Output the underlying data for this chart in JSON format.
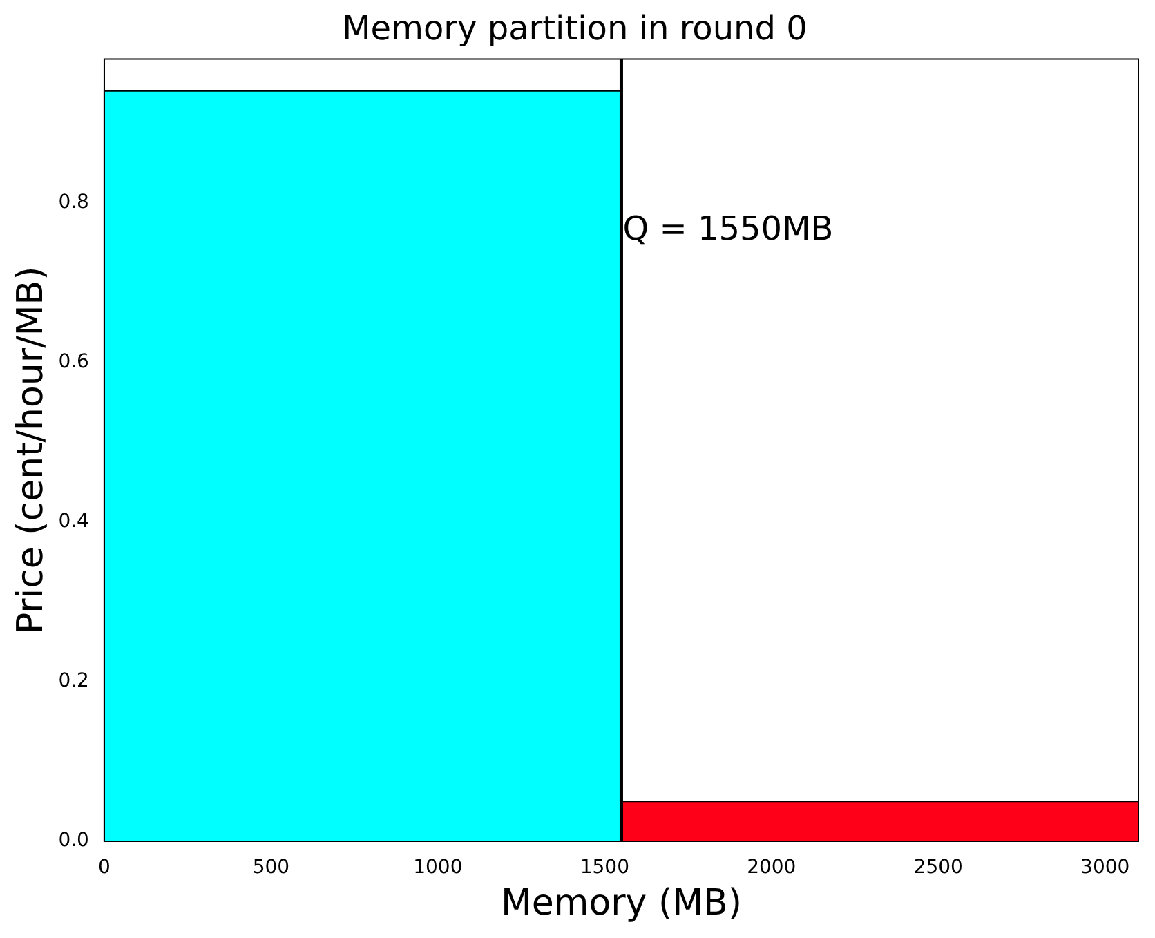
{
  "chart_data": {
    "type": "histogram",
    "title": "Memory partition in round 0",
    "xlabel": "Memory (MB)",
    "ylabel": "Price (cent/hour/MB)",
    "bins": [
      0,
      1550,
      3100
    ],
    "values": [
      0.94,
      0.05
    ],
    "colors": [
      "#00ffff",
      "#ff0019"
    ],
    "xlim": [
      0,
      3100
    ],
    "xticks": [
      0,
      500,
      1000,
      1500,
      2000,
      2500,
      3000
    ],
    "ylim": [
      0,
      0.98
    ],
    "yticks": [
      {
        "value": 0,
        "label": "0.0"
      },
      0.2,
      0.4,
      0.6,
      0.8
    ],
    "ref_lines": [
      {
        "axis": "x",
        "value": 1550,
        "label": "Q = 1550MB",
        "color": "#000000"
      }
    ],
    "grid": false,
    "legend": false
  }
}
